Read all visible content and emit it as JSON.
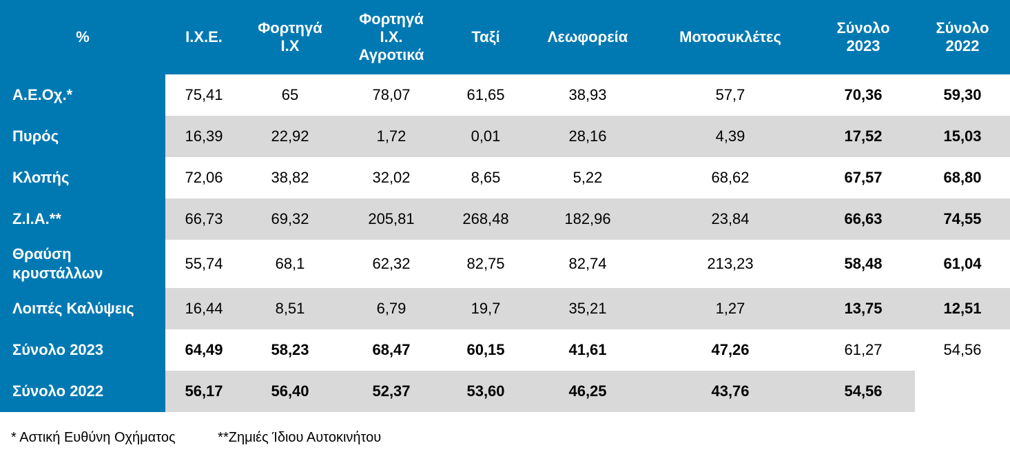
{
  "table": {
    "headers": [
      [
        "%"
      ],
      [
        "Ι.Χ.Ε."
      ],
      [
        "Φορτηγά",
        "Ι.Χ"
      ],
      [
        "Φορτηγά",
        "Ι.Χ.",
        "Αγροτικά"
      ],
      [
        "Ταξί"
      ],
      [
        "Λεωφορεία"
      ],
      [
        "Μοτοσυκλέτες"
      ],
      [
        "Σύνολο",
        "2023"
      ],
      [
        "Σύνολο",
        "2022"
      ]
    ],
    "rows": [
      {
        "label": [
          "Α.Ε.Οχ.*"
        ],
        "values": [
          "75,41",
          "65",
          "78,07",
          "61,65",
          "38,93",
          "57,7",
          "70,36",
          "59,30"
        ]
      },
      {
        "label": [
          "Πυρός"
        ],
        "values": [
          "16,39",
          "22,92",
          "1,72",
          "0,01",
          "28,16",
          "4,39",
          "17,52",
          "15,03"
        ]
      },
      {
        "label": [
          "Κλοπής"
        ],
        "values": [
          "72,06",
          "38,82",
          "32,02",
          "8,65",
          "5,22",
          "68,62",
          "67,57",
          "68,80"
        ]
      },
      {
        "label": [
          "Ζ.Ι.Α.**"
        ],
        "values": [
          "66,73",
          "69,32",
          "205,81",
          "268,48",
          "182,96",
          "23,84",
          "66,63",
          "74,55"
        ]
      },
      {
        "label": [
          "Θραύση",
          "κρυστάλλων"
        ],
        "values": [
          "55,74",
          "68,1",
          "62,32",
          "82,75",
          "82,74",
          "213,23",
          "58,48",
          "61,04"
        ]
      },
      {
        "label": [
          "Λοιπές Καλύψεις"
        ],
        "values": [
          "16,44",
          "8,51",
          "6,79",
          "19,7",
          "35,21",
          "1,27",
          "13,75",
          "12,51"
        ]
      },
      {
        "label": [
          "Σύνολο 2023"
        ],
        "values": [
          "64,49",
          "58,23",
          "68,47",
          "60,15",
          "41,61",
          "47,26",
          "61,27",
          "54,56"
        ]
      },
      {
        "label": [
          "Σύνολο 2022"
        ],
        "values": [
          "56,17",
          "56,40",
          "52,37",
          "53,60",
          "46,25",
          "43,76",
          "54,56",
          ""
        ]
      }
    ]
  },
  "footnotes": {
    "note1": "* Αστική Ευθύνη Οχήματος",
    "note2": "**Ζημιές Ίδιου Αυτοκινήτου"
  }
}
